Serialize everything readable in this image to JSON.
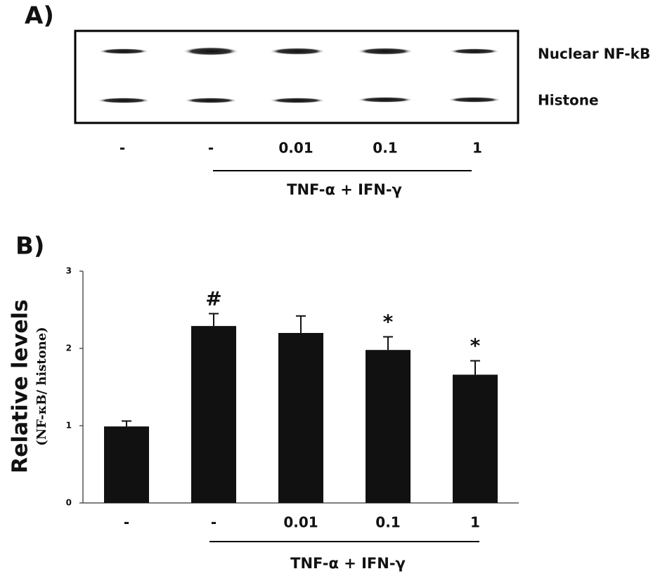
{
  "panel_a": {
    "label": "A)",
    "bands": [
      "Nuclear NF-kB",
      "Histone"
    ],
    "lanes": [
      "-",
      "-",
      "0.01",
      "0.1",
      "1"
    ],
    "treatment": "TNF-α + IFN-γ"
  },
  "chart_data": {
    "type": "bar",
    "label": "B)",
    "ylabel": "Relative levels",
    "ylabel_sub": "(NF-κB/ histone)",
    "categories": [
      "-",
      "-",
      "0.01",
      "0.1",
      "1"
    ],
    "values": [
      0.99,
      2.29,
      2.2,
      1.98,
      1.66
    ],
    "errors": [
      0.07,
      0.16,
      0.22,
      0.17,
      0.18
    ],
    "annotations": [
      null,
      "#",
      null,
      "*",
      "*"
    ],
    "treatment": "TNF-α + IFN-γ",
    "color": "#111111",
    "ylim": [
      0,
      3
    ],
    "yticks": [
      0,
      1,
      2,
      3
    ]
  }
}
